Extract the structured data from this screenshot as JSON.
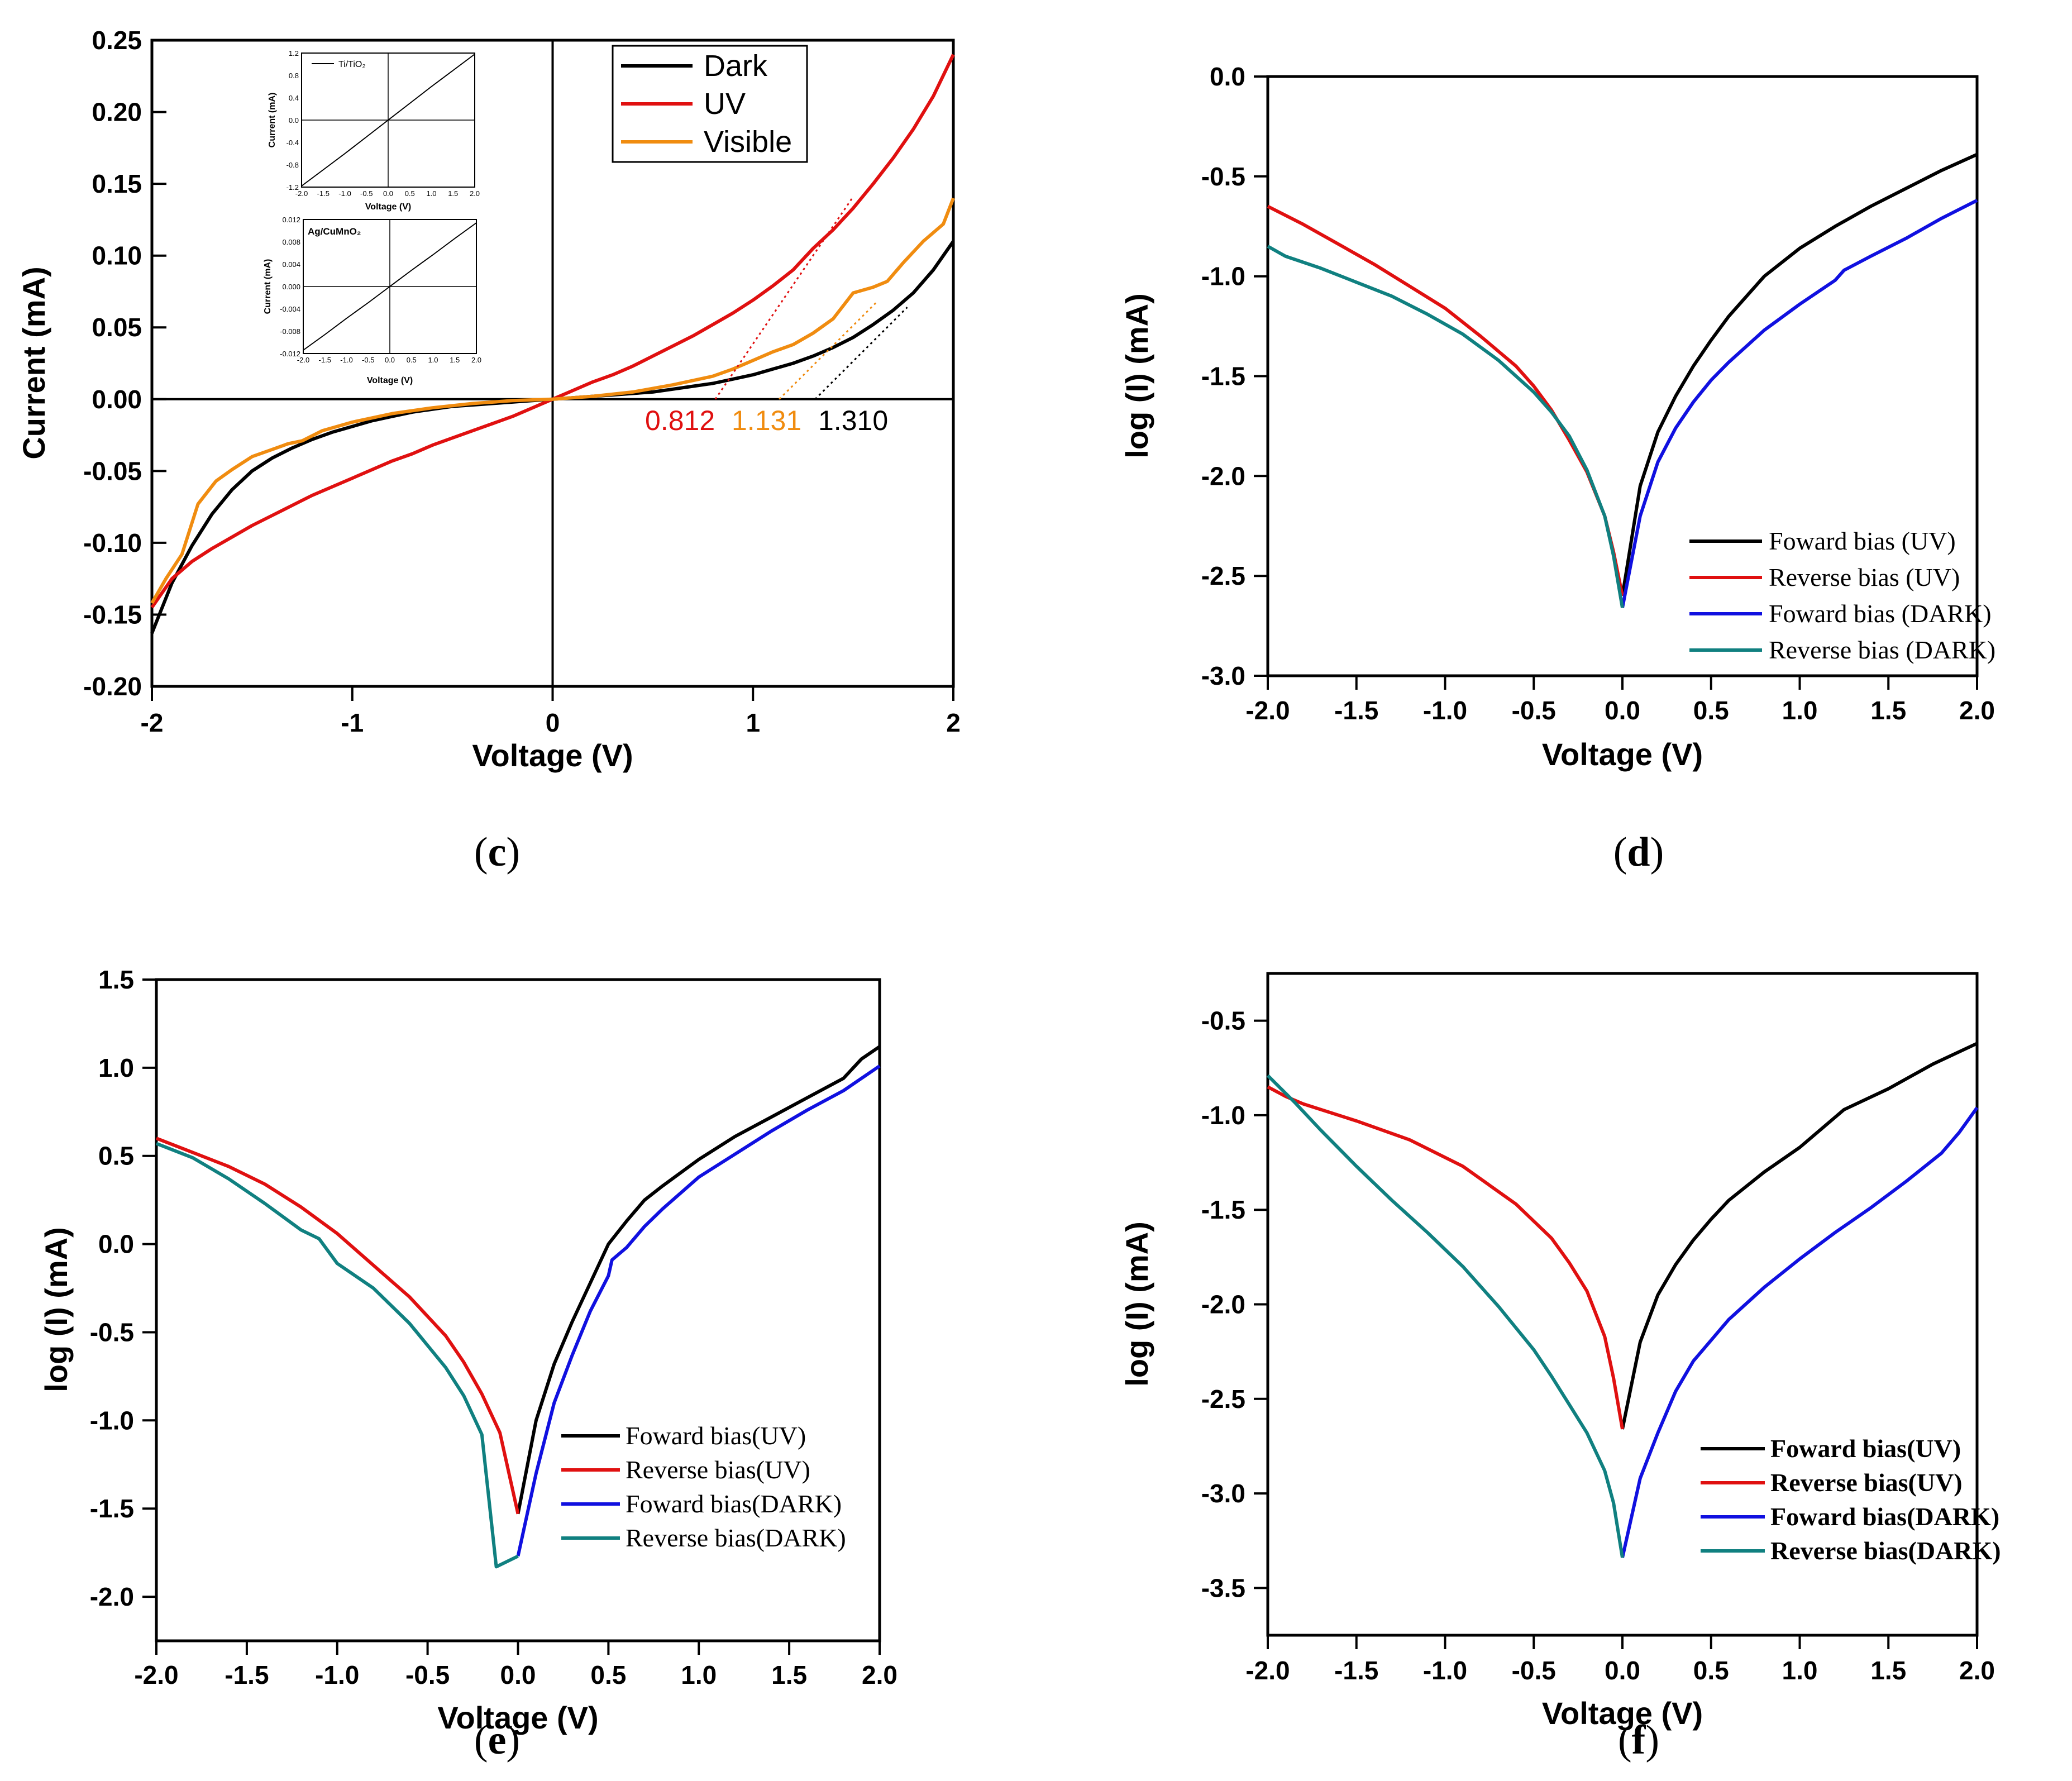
{
  "colors": {
    "dark": "#000000",
    "uv": "#e01010",
    "visible": "#f08c10",
    "fwd_dark": "#1010e0",
    "rev_dark": "#108080",
    "zero_line": "#000000"
  },
  "chart_data": [
    {
      "panel": "c",
      "panel_label": "c",
      "type": "line",
      "xlabel": "Voltage (V)",
      "ylabel": "Current (mA)",
      "xlim": [
        -2,
        2
      ],
      "ylim": [
        -0.2,
        0.25
      ],
      "xticks": [
        -2,
        -1,
        0,
        1,
        2
      ],
      "xtick_labels": [
        "-2",
        "-1",
        "0",
        "1",
        "2"
      ],
      "yticks": [
        -0.2,
        -0.15,
        -0.1,
        -0.05,
        0,
        0.05,
        0.1,
        0.15,
        0.2,
        0.25
      ],
      "ytick_labels": [
        "-0.20",
        "-0.15",
        "-0.10",
        "-0.05",
        "0.00",
        "0.05",
        "0.10",
        "0.15",
        "0.20",
        "0.25"
      ],
      "legend_position": "top-right",
      "series": [
        {
          "name": "Dark",
          "color_key": "dark",
          "x": [
            -2,
            -1.9,
            -1.8,
            -1.7,
            -1.6,
            -1.5,
            -1.4,
            -1.3,
            -1.2,
            -1.1,
            -1,
            -0.9,
            -0.8,
            -0.7,
            -0.6,
            -0.5,
            -0.4,
            -0.3,
            -0.2,
            -0.1,
            0,
            0.1,
            0.2,
            0.3,
            0.4,
            0.5,
            0.6,
            0.7,
            0.8,
            0.9,
            1,
            1.1,
            1.2,
            1.3,
            1.4,
            1.5,
            1.6,
            1.7,
            1.8,
            1.9,
            2
          ],
          "y": [
            -0.163,
            -0.128,
            -0.102,
            -0.08,
            -0.063,
            -0.05,
            -0.041,
            -0.034,
            -0.028,
            -0.023,
            -0.019,
            -0.015,
            -0.012,
            -0.009,
            -0.007,
            -0.005,
            -0.004,
            -0.003,
            -0.002,
            -0.001,
            0,
            0.001,
            0.002,
            0.003,
            0.004,
            0.005,
            0.007,
            0.009,
            0.011,
            0.014,
            0.017,
            0.021,
            0.025,
            0.03,
            0.036,
            0.043,
            0.052,
            0.062,
            0.074,
            0.09,
            0.11
          ]
        },
        {
          "name": "UV",
          "color_key": "uv",
          "x": [
            -2,
            -1.9,
            -1.8,
            -1.7,
            -1.6,
            -1.5,
            -1.4,
            -1.3,
            -1.2,
            -1.1,
            -1,
            -0.9,
            -0.8,
            -0.7,
            -0.6,
            -0.5,
            -0.4,
            -0.3,
            -0.2,
            -0.1,
            0,
            0.1,
            0.2,
            0.3,
            0.4,
            0.5,
            0.6,
            0.7,
            0.8,
            0.9,
            1,
            1.1,
            1.2,
            1.3,
            1.4,
            1.5,
            1.6,
            1.7,
            1.8,
            1.9,
            2
          ],
          "y": [
            -0.145,
            -0.125,
            -0.113,
            -0.104,
            -0.096,
            -0.088,
            -0.081,
            -0.074,
            -0.067,
            -0.061,
            -0.055,
            -0.049,
            -0.043,
            -0.038,
            -0.032,
            -0.027,
            -0.022,
            -0.017,
            -0.012,
            -0.006,
            0,
            0.006,
            0.012,
            0.017,
            0.023,
            0.03,
            0.037,
            0.044,
            0.052,
            0.06,
            0.069,
            0.079,
            0.09,
            0.105,
            0.118,
            0.133,
            0.15,
            0.168,
            0.188,
            0.211,
            0.24
          ]
        },
        {
          "name": "Visible",
          "color_key": "visible",
          "x": [
            -2,
            -1.93,
            -1.85,
            -1.77,
            -1.68,
            -1.6,
            -1.5,
            -1.4,
            -1.32,
            -1.25,
            -1.15,
            -1.0,
            -0.8,
            -0.6,
            -0.4,
            -0.2,
            0,
            0.2,
            0.4,
            0.6,
            0.8,
            0.9,
            1.0,
            1.1,
            1.2,
            1.3,
            1.4,
            1.5,
            1.6,
            1.67,
            1.75,
            1.85,
            1.95,
            2
          ],
          "y": [
            -0.142,
            -0.125,
            -0.108,
            -0.073,
            -0.057,
            -0.049,
            -0.04,
            -0.035,
            -0.031,
            -0.029,
            -0.022,
            -0.016,
            -0.01,
            -0.006,
            -0.003,
            -0.001,
            0,
            0.002,
            0.005,
            0.01,
            0.016,
            0.021,
            0.027,
            0.033,
            0.038,
            0.046,
            0.056,
            0.074,
            0.078,
            0.082,
            0.095,
            0.11,
            0.122,
            0.14
          ]
        }
      ],
      "extrapolation_lines": [
        {
          "color_key": "uv",
          "x": [
            0.812,
            1.5
          ],
          "y": [
            0,
            0.141
          ]
        },
        {
          "color_key": "visible",
          "x": [
            1.131,
            1.62
          ],
          "y": [
            0,
            0.068
          ]
        },
        {
          "color_key": "dark",
          "x": [
            1.31,
            1.77
          ],
          "y": [
            0,
            0.064
          ]
        }
      ],
      "annotations": [
        {
          "text": "0.812",
          "color_key": "uv"
        },
        {
          "text": "1.131",
          "color_key": "visible"
        },
        {
          "text": "1.310",
          "color_key": "dark"
        }
      ],
      "insets": [
        {
          "title": "Ti/TiO₂",
          "xlabel": "Voltage (V)",
          "ylabel": "Current (mA)",
          "xlim": [
            -2,
            2
          ],
          "ylim": [
            -1.2,
            1.2
          ],
          "xtick_labels": [
            "-2.0",
            "-1.5",
            "-1.0",
            "-0.5",
            "0.0",
            "0.5",
            "1.0",
            "1.5",
            "2.0"
          ],
          "ytick_labels": [
            "-1.2",
            "-0.8",
            "-0.4",
            "0.0",
            "0.4",
            "0.8",
            "1.2"
          ],
          "yticks": [
            -1.2,
            -0.8,
            -0.4,
            0,
            0.4,
            0.8,
            1.2
          ],
          "series": {
            "x": [
              -2,
              -1.5,
              -1,
              -0.5,
              0,
              0.5,
              1,
              1.5,
              2
            ],
            "y": [
              -1.18,
              -0.89,
              -0.6,
              -0.3,
              0,
              0.3,
              0.6,
              0.89,
              1.18
            ]
          }
        },
        {
          "title": "Ag/CuMnO₂",
          "xlabel": "Voltage (V)",
          "ylabel": "Current (mA)",
          "xlim": [
            -2,
            2
          ],
          "ylim": [
            -0.012,
            0.012
          ],
          "xtick_labels": [
            "-2.0",
            "-1.5",
            "-1.0",
            "-0.5",
            "0.0",
            "0.5",
            "1.0",
            "1.5",
            "2.0"
          ],
          "ytick_labels": [
            "-0.012",
            "-0.008",
            "-0.004",
            "0.000",
            "0.004",
            "0.008",
            "0.012"
          ],
          "yticks": [
            -0.012,
            -0.008,
            -0.004,
            0,
            0.004,
            0.008,
            0.012
          ],
          "series": {
            "x": [
              -2,
              -1.5,
              -1,
              -0.5,
              0,
              0.5,
              1,
              1.5,
              2
            ],
            "y": [
              -0.0114,
              -0.0086,
              -0.0057,
              -0.0029,
              0,
              0.0029,
              0.0057,
              0.0086,
              0.0114
            ]
          }
        }
      ]
    },
    {
      "panel": "d",
      "panel_label": "d",
      "type": "line",
      "xlabel": "Voltage (V)",
      "ylabel": "log (I) (mA)",
      "xlim": [
        -2,
        2
      ],
      "ylim": [
        -3,
        0
      ],
      "xticks": [
        -2,
        -1.5,
        -1,
        -0.5,
        0,
        0.5,
        1,
        1.5,
        2
      ],
      "xtick_labels": [
        "-2.0",
        "-1.5",
        "-1.0",
        "-0.5",
        "0.0",
        "0.5",
        "1.0",
        "1.5",
        "2.0"
      ],
      "yticks": [
        -3,
        -2.5,
        -2,
        -1.5,
        -1,
        -0.5,
        0
      ],
      "ytick_labels": [
        "-3.0",
        "-2.5",
        "-2.0",
        "-1.5",
        "-1.0",
        "-0.5",
        "0.0"
      ],
      "legend_position": "bottom-right",
      "series": [
        {
          "name": "Foward bias (UV)",
          "color_key": "dark",
          "x": [
            0,
            0.1,
            0.2,
            0.3,
            0.4,
            0.5,
            0.6,
            0.7,
            0.8,
            0.9,
            1,
            1.2,
            1.4,
            1.6,
            1.8,
            2
          ],
          "y": [
            -2.6,
            -2.05,
            -1.78,
            -1.6,
            -1.45,
            -1.32,
            -1.2,
            -1.1,
            -1.0,
            -0.93,
            -0.86,
            -0.75,
            -0.65,
            -0.56,
            -0.47,
            -0.39
          ]
        },
        {
          "name": "Reverse bias (UV)",
          "color_key": "uv",
          "x": [
            -2,
            -1.8,
            -1.6,
            -1.4,
            -1.2,
            -1.0,
            -0.8,
            -0.6,
            -0.5,
            -0.4,
            -0.3,
            -0.2,
            -0.1,
            -0.05,
            0
          ],
          "y": [
            -0.65,
            -0.74,
            -0.84,
            -0.94,
            -1.05,
            -1.16,
            -1.3,
            -1.45,
            -1.55,
            -1.67,
            -1.82,
            -1.98,
            -2.2,
            -2.38,
            -2.6
          ]
        },
        {
          "name": "Foward bias (DARK)",
          "color_key": "fwd_dark",
          "x": [
            0,
            0.1,
            0.2,
            0.3,
            0.4,
            0.5,
            0.6,
            0.8,
            1,
            1.2,
            1.25,
            1.4,
            1.6,
            1.8,
            2
          ],
          "y": [
            -2.66,
            -2.2,
            -1.93,
            -1.76,
            -1.63,
            -1.52,
            -1.43,
            -1.27,
            -1.14,
            -1.02,
            -0.97,
            -0.9,
            -0.81,
            -0.71,
            -0.62
          ]
        },
        {
          "name": "Reverse bias (DARK)",
          "color_key": "rev_dark",
          "x": [
            -2,
            -1.9,
            -1.7,
            -1.5,
            -1.3,
            -1.1,
            -0.9,
            -0.7,
            -0.5,
            -0.4,
            -0.3,
            -0.2,
            -0.1,
            -0.05,
            0
          ],
          "y": [
            -0.85,
            -0.9,
            -0.96,
            -1.03,
            -1.1,
            -1.19,
            -1.29,
            -1.42,
            -1.58,
            -1.68,
            -1.8,
            -1.97,
            -2.2,
            -2.4,
            -2.66
          ]
        }
      ]
    },
    {
      "panel": "e",
      "panel_label": "e",
      "type": "line",
      "xlabel": "Voltage (V)",
      "ylabel": "log (I) (mA)",
      "xlim": [
        -2,
        2
      ],
      "ylim": [
        -2.25,
        1.5
      ],
      "xticks": [
        -2,
        -1.5,
        -1,
        -0.5,
        0,
        0.5,
        1,
        1.5,
        2
      ],
      "xtick_labels": [
        "-2.0",
        "-1.5",
        "-1.0",
        "-0.5",
        "0.0",
        "0.5",
        "1.0",
        "1.5",
        "2.0"
      ],
      "yticks": [
        -2,
        -1.5,
        -1,
        -0.5,
        0,
        0.5,
        1,
        1.5
      ],
      "ytick_labels": [
        "-2.0",
        "-1.5",
        "-1.0",
        "-0.5",
        "0.0",
        "0.5",
        "1.0",
        "1.5"
      ],
      "legend_position": "bottom-right",
      "series": [
        {
          "name": "Foward bias(UV)",
          "color_key": "dark",
          "x": [
            0,
            0.1,
            0.2,
            0.3,
            0.4,
            0.5,
            0.6,
            0.7,
            0.8,
            1.0,
            1.2,
            1.4,
            1.6,
            1.8,
            1.9,
            2.0
          ],
          "y": [
            -1.53,
            -1.0,
            -0.68,
            -0.44,
            -0.22,
            0.0,
            0.13,
            0.25,
            0.33,
            0.48,
            0.61,
            0.72,
            0.83,
            0.94,
            1.05,
            1.12
          ]
        },
        {
          "name": "Reverse bias(UV)",
          "color_key": "uv",
          "x": [
            -2,
            -1.8,
            -1.6,
            -1.4,
            -1.2,
            -1.0,
            -0.8,
            -0.6,
            -0.4,
            -0.3,
            -0.2,
            -0.1,
            0
          ],
          "y": [
            0.6,
            0.52,
            0.44,
            0.34,
            0.21,
            0.06,
            -0.12,
            -0.3,
            -0.52,
            -0.67,
            -0.85,
            -1.07,
            -1.53
          ]
        },
        {
          "name": "Foward bias(DARK)",
          "color_key": "fwd_dark",
          "x": [
            0,
            0.1,
            0.2,
            0.3,
            0.4,
            0.5,
            0.52,
            0.6,
            0.7,
            0.8,
            1.0,
            1.2,
            1.4,
            1.6,
            1.8,
            2.0
          ],
          "y": [
            -1.77,
            -1.3,
            -0.9,
            -0.63,
            -0.38,
            -0.18,
            -0.09,
            -0.02,
            0.1,
            0.2,
            0.38,
            0.51,
            0.64,
            0.76,
            0.87,
            1.01
          ]
        },
        {
          "name": "Reverse bias(DARK)",
          "color_key": "rev_dark",
          "x": [
            -2,
            -1.8,
            -1.6,
            -1.4,
            -1.2,
            -1.1,
            -1.0,
            -0.8,
            -0.6,
            -0.4,
            -0.3,
            -0.2,
            -0.12,
            0
          ],
          "y": [
            0.57,
            0.49,
            0.37,
            0.23,
            0.08,
            0.03,
            -0.11,
            -0.25,
            -0.45,
            -0.7,
            -0.86,
            -1.08,
            -1.83,
            -1.77
          ]
        }
      ]
    },
    {
      "panel": "f",
      "panel_label": "f",
      "type": "line",
      "xlabel": "Voltage (V)",
      "ylabel": "log (I) (mA)",
      "xlim": [
        -2,
        2
      ],
      "ylim": [
        -3.75,
        -0.25
      ],
      "xticks": [
        -2,
        -1.5,
        -1,
        -0.5,
        0,
        0.5,
        1,
        1.5,
        2
      ],
      "xtick_labels": [
        "-2.0",
        "-1.5",
        "-1.0",
        "-0.5",
        "0.0",
        "0.5",
        "1.0",
        "1.5",
        "2.0"
      ],
      "yticks": [
        -3.5,
        -3,
        -2.5,
        -2,
        -1.5,
        -1,
        -0.5
      ],
      "ytick_labels": [
        "-3.5",
        "-3.0",
        "-2.5",
        "-2.0",
        "-1.5",
        "-1.0",
        "-0.5"
      ],
      "legend_position": "bottom-right",
      "series": [
        {
          "name": "Foward bias(UV)",
          "color_key": "dark",
          "x": [
            0,
            0.1,
            0.2,
            0.3,
            0.4,
            0.5,
            0.6,
            0.8,
            1.0,
            1.25,
            1.5,
            1.75,
            2.0
          ],
          "y": [
            -2.66,
            -2.2,
            -1.95,
            -1.79,
            -1.66,
            -1.55,
            -1.45,
            -1.3,
            -1.17,
            -0.97,
            -0.86,
            -0.73,
            -0.62
          ]
        },
        {
          "name": "Reverse bias(UV)",
          "color_key": "uv",
          "x": [
            -2,
            -1.9,
            -1.8,
            -1.5,
            -1.2,
            -0.9,
            -0.6,
            -0.4,
            -0.3,
            -0.2,
            -0.1,
            -0.05,
            0
          ],
          "y": [
            -0.85,
            -0.9,
            -0.94,
            -1.03,
            -1.13,
            -1.27,
            -1.47,
            -1.65,
            -1.78,
            -1.93,
            -2.17,
            -2.39,
            -2.66
          ]
        },
        {
          "name": "Foward bias(DARK)",
          "color_key": "fwd_dark",
          "x": [
            0,
            0.1,
            0.2,
            0.3,
            0.4,
            0.6,
            0.8,
            1.0,
            1.2,
            1.4,
            1.6,
            1.8,
            1.9,
            2.0
          ],
          "y": [
            -3.34,
            -2.92,
            -2.68,
            -2.46,
            -2.3,
            -2.08,
            -1.91,
            -1.76,
            -1.62,
            -1.49,
            -1.35,
            -1.2,
            -1.09,
            -0.96
          ]
        },
        {
          "name": "Reverse bias(DARK)",
          "color_key": "rev_dark",
          "x": [
            -2,
            -1.85,
            -1.7,
            -1.5,
            -1.3,
            -1.1,
            -0.9,
            -0.7,
            -0.5,
            -0.4,
            -0.3,
            -0.2,
            -0.1,
            -0.05,
            0
          ],
          "y": [
            -0.79,
            -0.93,
            -1.08,
            -1.27,
            -1.45,
            -1.62,
            -1.8,
            -2.01,
            -2.24,
            -2.38,
            -2.53,
            -2.68,
            -2.88,
            -3.05,
            -3.34
          ]
        }
      ]
    }
  ]
}
